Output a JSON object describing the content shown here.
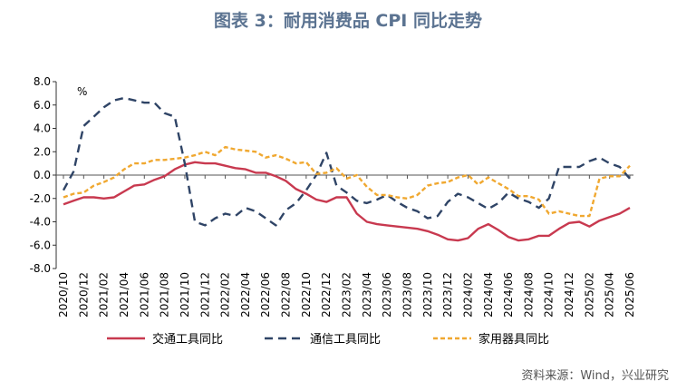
{
  "title": "图表 3：耐用消费品 CPI 同比走势",
  "source": "资料来源：Wind，兴业研究",
  "chart_data": {
    "type": "line",
    "title": "图表 3：耐用消费品 CPI 同比走势",
    "ylabel": "%",
    "ylim": [
      -8,
      8
    ],
    "yticks": [
      "8.0",
      "6.0",
      "4.0",
      "2.0",
      "0.0",
      "-2.0",
      "-4.0",
      "-6.0",
      "-8.0"
    ],
    "ytick_values": [
      8,
      6,
      4,
      2,
      0,
      -2,
      -4,
      -6,
      -8
    ],
    "x_start": "2020/10",
    "x_end": "2025/06",
    "xtick_labels": [
      "2020/10",
      "2020/12",
      "2021/02",
      "2021/04",
      "2021/06",
      "2021/08",
      "2021/10",
      "2021/12",
      "2022/02",
      "2022/04",
      "2022/06",
      "2022/08",
      "2022/10",
      "2022/12",
      "2023/02",
      "2023/04",
      "2023/06",
      "2023/08",
      "2023/10",
      "2023/12",
      "2024/02",
      "2024/04",
      "2024/06",
      "2024/08",
      "2024/10",
      "2024/12",
      "2025/02",
      "2025/04",
      "2025/06"
    ],
    "legend_position": "bottom",
    "grid": false,
    "series": [
      {
        "name": "交通工具同比",
        "color": "#c8394f",
        "style": "solid",
        "values": [
          -2.5,
          -2.2,
          -1.9,
          -1.9,
          -2.0,
          -1.9,
          -1.4,
          -0.9,
          -0.8,
          -0.4,
          -0.1,
          0.5,
          0.9,
          1.1,
          1.0,
          1.0,
          0.8,
          0.6,
          0.5,
          0.2,
          0.2,
          -0.1,
          -0.5,
          -1.2,
          -1.6,
          -2.1,
          -2.3,
          -1.9,
          -1.9,
          -3.3,
          -4.0,
          -4.2,
          -4.3,
          -4.4,
          -4.5,
          -4.6,
          -4.8,
          -5.1,
          -5.5,
          -5.6,
          -5.4,
          -4.6,
          -4.2,
          -4.7,
          -5.3,
          -5.6,
          -5.5,
          -5.2,
          -5.2,
          -4.6,
          -4.1,
          -4.0,
          -4.4,
          -3.9,
          -3.6,
          -3.3,
          -2.8
        ]
      },
      {
        "name": "通信工具同比",
        "color": "#2f4466",
        "style": "dashed",
        "values": [
          -1.3,
          0.3,
          4.2,
          5.0,
          5.8,
          6.4,
          6.6,
          6.4,
          6.2,
          6.2,
          5.3,
          5.0,
          1.0,
          -4.0,
          -4.3,
          -3.7,
          -3.3,
          -3.5,
          -2.8,
          -3.1,
          -3.7,
          -4.3,
          -3.0,
          -2.4,
          -1.3,
          0.0,
          1.9,
          -0.9,
          -1.5,
          -2.2,
          -2.4,
          -2.1,
          -1.7,
          -2.3,
          -2.8,
          -3.1,
          -3.7,
          -3.5,
          -2.3,
          -1.6,
          -1.9,
          -2.4,
          -2.9,
          -2.4,
          -1.5,
          -2.0,
          -2.3,
          -2.8,
          -2.0,
          0.7,
          0.7,
          0.7,
          1.2,
          1.5,
          1.0,
          0.7,
          -0.3
        ]
      },
      {
        "name": "家用器具同比",
        "color": "#f0a830",
        "style": "dashed-short",
        "values": [
          -1.9,
          -1.6,
          -1.5,
          -0.9,
          -0.6,
          -0.2,
          0.5,
          1.0,
          1.0,
          1.3,
          1.3,
          1.4,
          1.5,
          1.7,
          2.0,
          1.7,
          2.4,
          2.2,
          2.1,
          2.0,
          1.5,
          1.7,
          1.4,
          1.0,
          1.1,
          0.1,
          0.2,
          0.6,
          -0.3,
          0.0,
          -1.0,
          -1.7,
          -1.7,
          -1.9,
          -2.0,
          -1.7,
          -0.9,
          -0.7,
          -0.6,
          -0.2,
          0.0,
          -0.8,
          -0.2,
          -0.7,
          -1.2,
          -1.8,
          -1.8,
          -2.1,
          -3.3,
          -3.1,
          -3.3,
          -3.5,
          -3.5,
          -0.3,
          -0.1,
          -0.1,
          0.8
        ]
      }
    ]
  }
}
